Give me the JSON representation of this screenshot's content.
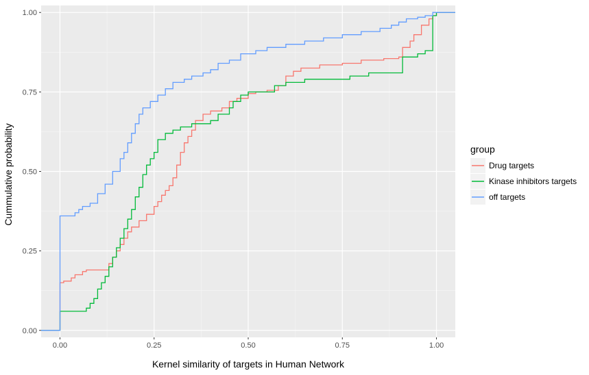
{
  "chart_data": {
    "type": "line",
    "step": true,
    "title": "",
    "xlabel": "Kernel similarity of targets in Human Network",
    "ylabel": "Cummulative probability",
    "xlim": [
      -0.05,
      1.05
    ],
    "ylim": [
      -0.022,
      1.022
    ],
    "x_ticks": [
      0.0,
      0.25,
      0.5,
      0.75,
      1.0
    ],
    "x_tick_labels": [
      "0.00",
      "0.25",
      "0.50",
      "0.75",
      "1.00"
    ],
    "y_ticks": [
      0.0,
      0.25,
      0.5,
      0.75,
      1.0
    ],
    "y_tick_labels": [
      "0.00",
      "0.25",
      "0.50",
      "0.75",
      "1.00"
    ],
    "grid": true,
    "background_color": "#ebebeb",
    "legend": {
      "title": "group",
      "position": "right"
    },
    "series": [
      {
        "name": "Drug targets",
        "color": "#f8766d",
        "points": [
          [
            -0.05,
            0.0
          ],
          [
            0.0,
            0.0
          ],
          [
            0.0,
            0.15
          ],
          [
            0.01,
            0.155
          ],
          [
            0.03,
            0.165
          ],
          [
            0.04,
            0.175
          ],
          [
            0.06,
            0.185
          ],
          [
            0.07,
            0.19
          ],
          [
            0.12,
            0.19
          ],
          [
            0.13,
            0.21
          ],
          [
            0.14,
            0.23
          ],
          [
            0.15,
            0.25
          ],
          [
            0.16,
            0.27
          ],
          [
            0.17,
            0.29
          ],
          [
            0.18,
            0.31
          ],
          [
            0.19,
            0.325
          ],
          [
            0.21,
            0.345
          ],
          [
            0.23,
            0.365
          ],
          [
            0.25,
            0.39
          ],
          [
            0.26,
            0.405
          ],
          [
            0.27,
            0.425
          ],
          [
            0.28,
            0.44
          ],
          [
            0.29,
            0.455
          ],
          [
            0.3,
            0.48
          ],
          [
            0.31,
            0.52
          ],
          [
            0.32,
            0.56
          ],
          [
            0.33,
            0.59
          ],
          [
            0.34,
            0.61
          ],
          [
            0.35,
            0.63
          ],
          [
            0.36,
            0.66
          ],
          [
            0.38,
            0.68
          ],
          [
            0.4,
            0.69
          ],
          [
            0.43,
            0.7
          ],
          [
            0.45,
            0.72
          ],
          [
            0.47,
            0.73
          ],
          [
            0.5,
            0.745
          ],
          [
            0.52,
            0.75
          ],
          [
            0.55,
            0.755
          ],
          [
            0.58,
            0.77
          ],
          [
            0.6,
            0.8
          ],
          [
            0.62,
            0.815
          ],
          [
            0.64,
            0.825
          ],
          [
            0.69,
            0.835
          ],
          [
            0.75,
            0.84
          ],
          [
            0.8,
            0.85
          ],
          [
            0.86,
            0.855
          ],
          [
            0.9,
            0.86
          ],
          [
            0.91,
            0.89
          ],
          [
            0.93,
            0.91
          ],
          [
            0.94,
            0.93
          ],
          [
            0.96,
            0.96
          ],
          [
            0.98,
            0.98
          ],
          [
            0.99,
            0.99
          ],
          [
            1.0,
            1.0
          ],
          [
            1.05,
            1.0
          ]
        ]
      },
      {
        "name": "Kinase inhibitors targets",
        "color": "#00ba38",
        "points": [
          [
            -0.05,
            0.0
          ],
          [
            0.0,
            0.0
          ],
          [
            0.0,
            0.06
          ],
          [
            0.06,
            0.06
          ],
          [
            0.07,
            0.07
          ],
          [
            0.08,
            0.085
          ],
          [
            0.09,
            0.1
          ],
          [
            0.1,
            0.13
          ],
          [
            0.11,
            0.15
          ],
          [
            0.12,
            0.17
          ],
          [
            0.13,
            0.2
          ],
          [
            0.14,
            0.23
          ],
          [
            0.15,
            0.26
          ],
          [
            0.16,
            0.29
          ],
          [
            0.17,
            0.32
          ],
          [
            0.18,
            0.35
          ],
          [
            0.19,
            0.38
          ],
          [
            0.2,
            0.42
          ],
          [
            0.21,
            0.45
          ],
          [
            0.22,
            0.49
          ],
          [
            0.23,
            0.52
          ],
          [
            0.24,
            0.54
          ],
          [
            0.25,
            0.56
          ],
          [
            0.26,
            0.6
          ],
          [
            0.28,
            0.62
          ],
          [
            0.3,
            0.63
          ],
          [
            0.32,
            0.64
          ],
          [
            0.35,
            0.65
          ],
          [
            0.4,
            0.66
          ],
          [
            0.42,
            0.68
          ],
          [
            0.45,
            0.7
          ],
          [
            0.46,
            0.72
          ],
          [
            0.48,
            0.74
          ],
          [
            0.5,
            0.75
          ],
          [
            0.52,
            0.75
          ],
          [
            0.57,
            0.77
          ],
          [
            0.6,
            0.78
          ],
          [
            0.65,
            0.79
          ],
          [
            0.7,
            0.79
          ],
          [
            0.77,
            0.8
          ],
          [
            0.82,
            0.81
          ],
          [
            0.88,
            0.81
          ],
          [
            0.9,
            0.81
          ],
          [
            0.91,
            0.86
          ],
          [
            0.95,
            0.87
          ],
          [
            0.97,
            0.88
          ],
          [
            0.99,
            0.89
          ],
          [
            0.99,
            0.99
          ],
          [
            1.0,
            1.0
          ],
          [
            1.05,
            1.0
          ]
        ]
      },
      {
        "name": "off targets",
        "color": "#619cff",
        "points": [
          [
            -0.05,
            0.0
          ],
          [
            0.0,
            0.0
          ],
          [
            0.0,
            0.36
          ],
          [
            0.03,
            0.36
          ],
          [
            0.04,
            0.37
          ],
          [
            0.05,
            0.38
          ],
          [
            0.06,
            0.39
          ],
          [
            0.08,
            0.4
          ],
          [
            0.1,
            0.43
          ],
          [
            0.12,
            0.46
          ],
          [
            0.14,
            0.5
          ],
          [
            0.16,
            0.54
          ],
          [
            0.17,
            0.56
          ],
          [
            0.18,
            0.59
          ],
          [
            0.19,
            0.62
          ],
          [
            0.2,
            0.65
          ],
          [
            0.21,
            0.68
          ],
          [
            0.22,
            0.7
          ],
          [
            0.24,
            0.72
          ],
          [
            0.26,
            0.74
          ],
          [
            0.28,
            0.76
          ],
          [
            0.3,
            0.78
          ],
          [
            0.33,
            0.79
          ],
          [
            0.35,
            0.8
          ],
          [
            0.38,
            0.81
          ],
          [
            0.4,
            0.82
          ],
          [
            0.42,
            0.84
          ],
          [
            0.45,
            0.85
          ],
          [
            0.48,
            0.87
          ],
          [
            0.5,
            0.87
          ],
          [
            0.52,
            0.88
          ],
          [
            0.55,
            0.89
          ],
          [
            0.6,
            0.9
          ],
          [
            0.65,
            0.91
          ],
          [
            0.7,
            0.92
          ],
          [
            0.75,
            0.93
          ],
          [
            0.8,
            0.94
          ],
          [
            0.85,
            0.95
          ],
          [
            0.88,
            0.96
          ],
          [
            0.9,
            0.97
          ],
          [
            0.92,
            0.98
          ],
          [
            0.95,
            0.985
          ],
          [
            0.97,
            0.99
          ],
          [
            0.99,
            1.0
          ],
          [
            1.05,
            1.0
          ]
        ]
      }
    ]
  }
}
